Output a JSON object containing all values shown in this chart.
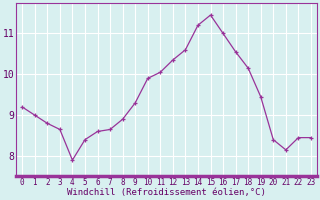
{
  "x": [
    0,
    1,
    2,
    3,
    4,
    5,
    6,
    7,
    8,
    9,
    10,
    11,
    12,
    13,
    14,
    15,
    16,
    17,
    18,
    19,
    20,
    21,
    22,
    23
  ],
  "y": [
    9.2,
    9.0,
    8.8,
    8.65,
    7.9,
    8.4,
    8.6,
    8.65,
    8.9,
    9.3,
    9.9,
    10.05,
    10.35,
    10.6,
    11.2,
    11.45,
    11.0,
    10.55,
    10.15,
    9.45,
    8.4,
    8.15,
    8.45,
    8.45
  ],
  "line_color": "#993399",
  "marker": "+",
  "marker_size": 3,
  "bg_color": "#d8f0f0",
  "grid_color": "#ffffff",
  "xlabel": "Windchill (Refroidissement éolien,°C)",
  "xlabel_color": "#660066",
  "tick_color": "#660066",
  "axis_bar_color": "#993399",
  "ylim_min": 7.5,
  "ylim_max": 11.75,
  "xlim_min": -0.5,
  "xlim_max": 23.5,
  "yticks": [
    8,
    9,
    10,
    11
  ],
  "xticks": [
    0,
    1,
    2,
    3,
    4,
    5,
    6,
    7,
    8,
    9,
    10,
    11,
    12,
    13,
    14,
    15,
    16,
    17,
    18,
    19,
    20,
    21,
    22,
    23
  ],
  "tick_fontsize": 5.5,
  "ytick_fontsize": 7.0,
  "xlabel_fontsize": 6.5
}
